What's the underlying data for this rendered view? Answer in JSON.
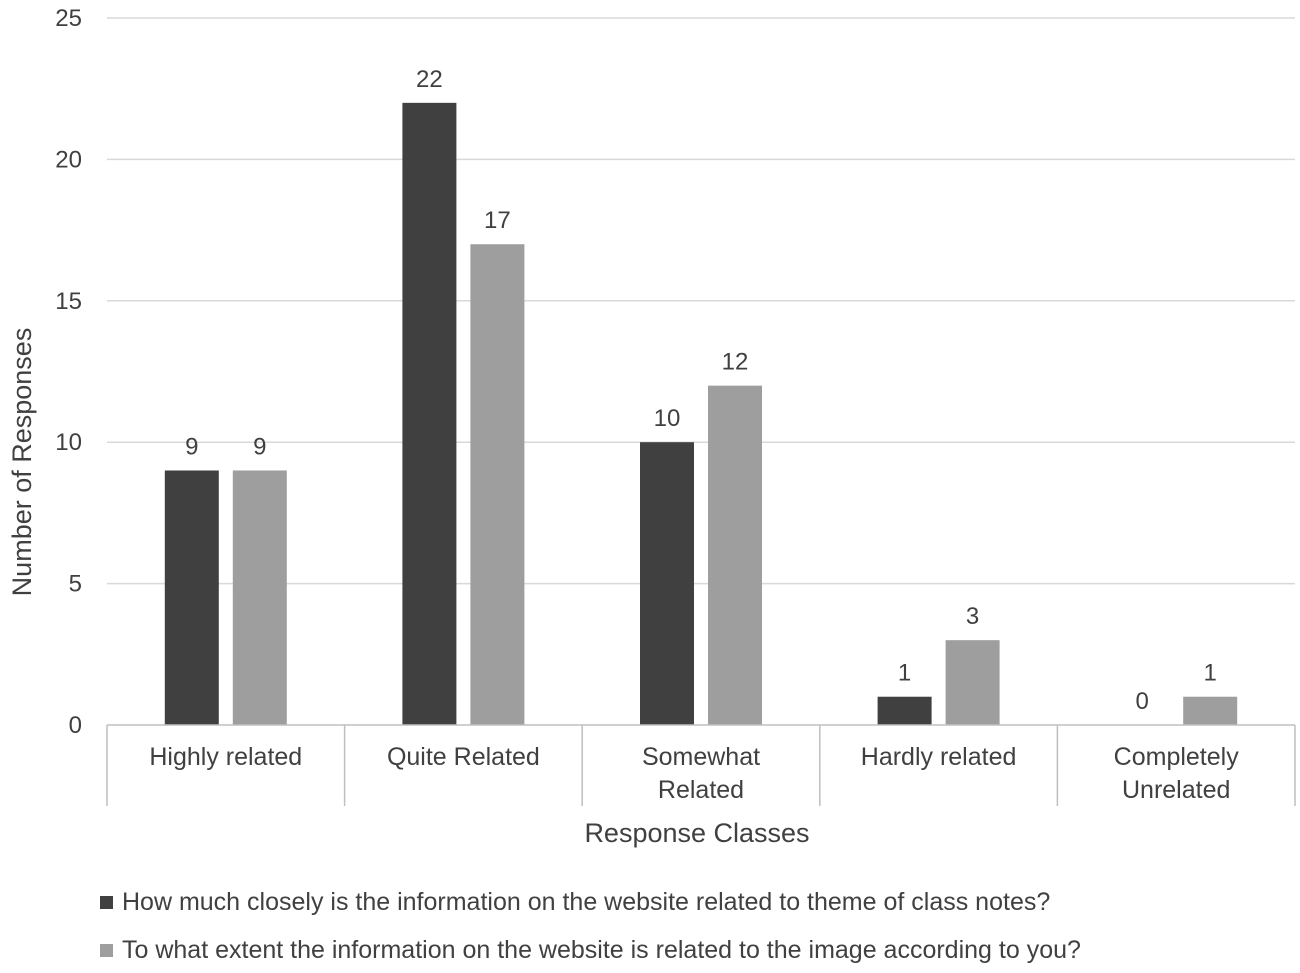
{
  "chart_data": {
    "type": "bar",
    "xlabel": "Response Classes",
    "ylabel": "Number of Responses",
    "ylim": [
      0,
      25
    ],
    "yticks": [
      0,
      5,
      10,
      15,
      20,
      25
    ],
    "grid": true,
    "legend_position": "bottom",
    "categories": [
      [
        "Highly related"
      ],
      [
        "Quite Related"
      ],
      [
        "Somewhat",
        "Related"
      ],
      [
        "Hardly related"
      ],
      [
        "Completely",
        "Unrelated"
      ]
    ],
    "series": [
      {
        "name": "How much closely is the information on the website related to theme of class notes?",
        "values": [
          9,
          22,
          10,
          1,
          0
        ],
        "color": "#404040"
      },
      {
        "name": "To what extent the information on the website is related to the image according to you?",
        "values": [
          9,
          17,
          12,
          3,
          1
        ],
        "color": "#9e9e9e"
      }
    ]
  }
}
